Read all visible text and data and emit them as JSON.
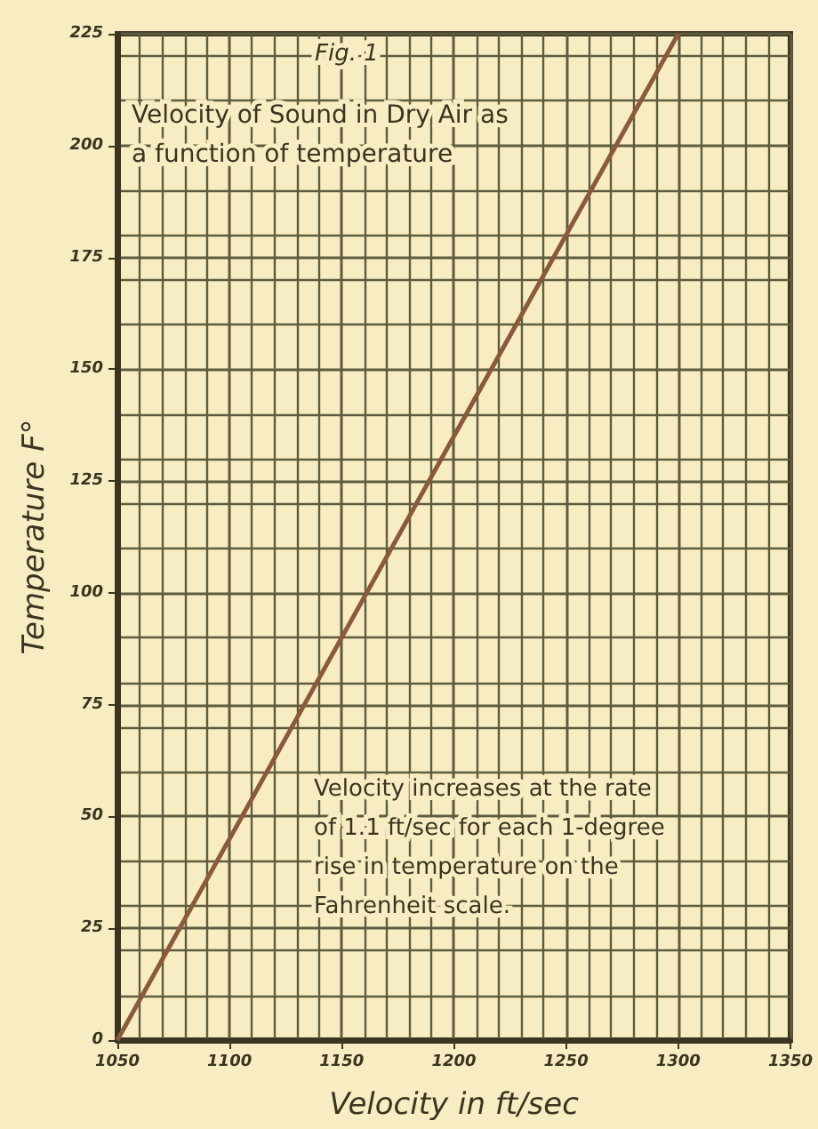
{
  "chart_data": {
    "type": "line",
    "subtitle": "Fig. 1",
    "title": "Velocity of Sound in Dry Air as a function of temperature",
    "xlabel": "Velocity in ft/sec",
    "ylabel": "Temperature F°",
    "x": [
      1050,
      1300
    ],
    "series": [
      {
        "color": "#8a5a3c",
        "values": [
          0,
          225
        ]
      }
    ],
    "xlim": [
      1050,
      1350
    ],
    "xticks": [
      1050,
      1100,
      1150,
      1200,
      1250,
      1300,
      1350
    ],
    "ylim": [
      0,
      225
    ],
    "yticks": [
      0,
      25,
      50,
      75,
      100,
      125,
      150,
      175,
      200,
      225
    ],
    "grid": true,
    "marker": "none",
    "line_style": "solid",
    "annotations": [
      "Velocity increases at the rate of 1.1 ft/sec for each 1-degree rise in temperature on the Fahrenheit scale."
    ]
  }
}
